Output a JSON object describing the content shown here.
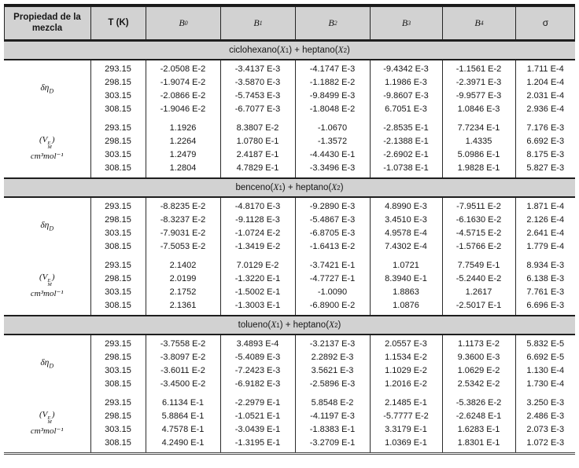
{
  "colors": {
    "band_gray": "#d2d2d2",
    "rule_black": "#1a1a1a"
  },
  "header": {
    "property_col": "Propiedad de la mezcla",
    "temp_col": "T (K)",
    "b_cols": [
      {
        "base": "B",
        "sub": "0"
      },
      {
        "base": "B",
        "sub": "1"
      },
      {
        "base": "B",
        "sub": "2"
      },
      {
        "base": "B",
        "sub": "3"
      },
      {
        "base": "B",
        "sub": "4"
      }
    ],
    "sigma_col": "σ"
  },
  "sections": [
    {
      "title": {
        "pre": "ciclohexano(",
        "x1": "X",
        "x1_sub": "1",
        "mid": ") + heptano(",
        "x2": "X",
        "x2_sub": "2",
        "post": ")"
      },
      "groups": [
        {
          "label": {
            "base": "δη",
            "sub": "D"
          },
          "rows": [
            {
              "T": "293.15",
              "B0": "-2.0508 E-2",
              "B1": "-3.4137 E-3",
              "B2": "-4.1747 E-3",
              "B3": "-9.4342 E-3",
              "B4": "-1.1561 E-2",
              "sigma": "1.711 E-4"
            },
            {
              "T": "298.15",
              "B0": "-1.9074 E-2",
              "B1": "-3.5870 E-3",
              "B2": "-1.1882 E-2",
              "B3": "1.1986 E-3",
              "B4": "-2.3971 E-3",
              "sigma": "1.204 E-4"
            },
            {
              "T": "303.15",
              "B0": "-2.0866 E-2",
              "B1": "-5.7453 E-3",
              "B2": "-9.8499 E-3",
              "B3": "-9.8607 E-3",
              "B4": "-9.9577 E-3",
              "sigma": "2.031 E-4"
            },
            {
              "T": "308.15",
              "B0": "-1.9046 E-2",
              "B1": "-6.7077 E-3",
              "B2": "-1.8048 E-2",
              "B3": "6.7051 E-3",
              "B4": "1.0846 E-3",
              "sigma": "2.936 E-4"
            }
          ]
        },
        {
          "label": {
            "open": "(",
            "base": "V",
            "sup": "E",
            "sub": "M",
            "close": ")",
            "unit": "cm³mol⁻¹"
          },
          "rows": [
            {
              "T": "293.15",
              "B0": "1.1926",
              "B1": "8.3807 E-2",
              "B2": "-1.0670",
              "B3": "-2.8535 E-1",
              "B4": "7.7234 E-1",
              "sigma": "7.176 E-3"
            },
            {
              "T": "298.15",
              "B0": "1.2264",
              "B1": "1.0780 E-1",
              "B2": "-1.3572",
              "B3": "-2.1388 E-1",
              "B4": "1.4335",
              "sigma": "6.692 E-3"
            },
            {
              "T": "303.15",
              "B0": "1.2479",
              "B1": "2.4187 E-1",
              "B2": "-4.4430 E-1",
              "B3": "-2.6902 E-1",
              "B4": "5.0986 E-1",
              "sigma": "8.175 E-3"
            },
            {
              "T": "308.15",
              "B0": "1.2804",
              "B1": "4.7829 E-1",
              "B2": "-3.3496 E-3",
              "B3": "-1.0738 E-1",
              "B4": "1.9828 E-1",
              "sigma": "5.827 E-3"
            }
          ]
        }
      ]
    },
    {
      "title": {
        "pre": "benceno(",
        "x1": "X",
        "x1_sub": "1",
        "mid": ") + heptano(",
        "x2": "X",
        "x2_sub": "2",
        "post": ")"
      },
      "groups": [
        {
          "label": {
            "base": "δη",
            "sub": "D"
          },
          "rows": [
            {
              "T": "293.15",
              "B0": "-8.8235 E-2",
              "B1": "-4.8170 E-3",
              "B2": "-9.2890 E-3",
              "B3": "4.8990 E-3",
              "B4": "-7.9511 E-2",
              "sigma": "1.871 E-4"
            },
            {
              "T": "298.15",
              "B0": "-8.3237 E-2",
              "B1": "-9.1128 E-3",
              "B2": "-5.4867 E-3",
              "B3": "3.4510 E-3",
              "B4": "-6.1630 E-2",
              "sigma": "2.126 E-4"
            },
            {
              "T": "303.15",
              "B0": "-7.9031 E-2",
              "B1": "-1.0724 E-2",
              "B2": "-6.8705 E-3",
              "B3": "4.9578 E-4",
              "B4": "-4.5715 E-2",
              "sigma": "2.641 E-4"
            },
            {
              "T": "308.15",
              "B0": "-7.5053 E-2",
              "B1": "-1.3419 E-2",
              "B2": "-1.6413 E-2",
              "B3": "7.4302 E-4",
              "B4": "-1.5766 E-2",
              "sigma": "1.779 E-4"
            }
          ]
        },
        {
          "label": {
            "open": "(",
            "base": "V",
            "sup": "E",
            "sub": "M",
            "close": ")",
            "unit": "cm³mol⁻¹"
          },
          "rows": [
            {
              "T": "293.15",
              "B0": "2.1402",
              "B1": "7.0129 E-2",
              "B2": "-3.7421 E-1",
              "B3": "1.0721",
              "B4": "7.7549 E-1",
              "sigma": "8.934 E-3"
            },
            {
              "T": "298.15",
              "B0": "2.0199",
              "B1": "-1.3220 E-1",
              "B2": "-4.7727 E-1",
              "B3": "8.3940 E-1",
              "B4": "-5.2440 E-2",
              "sigma": "6.138 E-3"
            },
            {
              "T": "303.15",
              "B0": "2.1752",
              "B1": "-1.5002 E-1",
              "B2": "-1.0090",
              "B3": "1.8863",
              "B4": "1.2617",
              "sigma": "7.761 E-3"
            },
            {
              "T": "308.15",
              "B0": "2.1361",
              "B1": "-1.3003 E-1",
              "B2": "-6.8900 E-2",
              "B3": "1.0876",
              "B4": "-2.5017 E-1",
              "sigma": "6.696 E-3"
            }
          ]
        }
      ]
    },
    {
      "title": {
        "pre": "tolueno(",
        "x1": "X",
        "x1_sub": "1",
        "mid": ") + heptano(",
        "x2": "X",
        "x2_sub": "2",
        "post": ")"
      },
      "groups": [
        {
          "label": {
            "base": "δη",
            "sub": "D"
          },
          "rows": [
            {
              "T": "293.15",
              "B0": "-3.7558 E-2",
              "B1": "3.4893 E-4",
              "B2": "-3.2137 E-3",
              "B3": "2.0557 E-3",
              "B4": "1.1173 E-2",
              "sigma": "5.832 E-5"
            },
            {
              "T": "298.15",
              "B0": "-3.8097 E-2",
              "B1": "-5.4089 E-3",
              "B2": "2.2892 E-3",
              "B3": "1.1534 E-2",
              "B4": "9.3600 E-3",
              "sigma": "6.692 E-5"
            },
            {
              "T": "303.15",
              "B0": "-3.6011 E-2",
              "B1": "-7.2423 E-3",
              "B2": "3.5621 E-3",
              "B3": "1.1029 E-2",
              "B4": "1.0629 E-2",
              "sigma": "1.130 E-4"
            },
            {
              "T": "308.15",
              "B0": "-3.4500 E-2",
              "B1": "-6.9182 E-3",
              "B2": "-2.5896 E-3",
              "B3": "1.2016 E-2",
              "B4": "2.5342 E-2",
              "sigma": "1.730 E-4"
            }
          ]
        },
        {
          "label": {
            "open": "(",
            "base": "V",
            "sup": "E",
            "sub": "M",
            "close": ")",
            "unit": "cm³mol⁻¹"
          },
          "rows": [
            {
              "T": "293.15",
              "B0": "6.1134 E-1",
              "B1": "-2.2979 E-1",
              "B2": "5.8548 E-2",
              "B3": "2.1485 E-1",
              "B4": "-5.3826 E-2",
              "sigma": "3.250 E-3"
            },
            {
              "T": "298.15",
              "B0": "5.8864 E-1",
              "B1": "-1.0521 E-1",
              "B2": "-4.1197 E-3",
              "B3": "-5.7777 E-2",
              "B4": "-2.6248 E-1",
              "sigma": "2.486 E-3"
            },
            {
              "T": "303.15",
              "B0": "4.7578 E-1",
              "B1": "-3.0439 E-1",
              "B2": "-1.8383 E-1",
              "B3": "3.3179 E-1",
              "B4": "1.6283 E-1",
              "sigma": "2.073 E-3"
            },
            {
              "T": "308.15",
              "B0": "4.2490 E-1",
              "B1": "-1.3195 E-1",
              "B2": "-3.2709 E-1",
              "B3": "1.0369 E-1",
              "B4": "1.8301 E-1",
              "sigma": "1.072 E-3"
            }
          ]
        }
      ]
    }
  ]
}
